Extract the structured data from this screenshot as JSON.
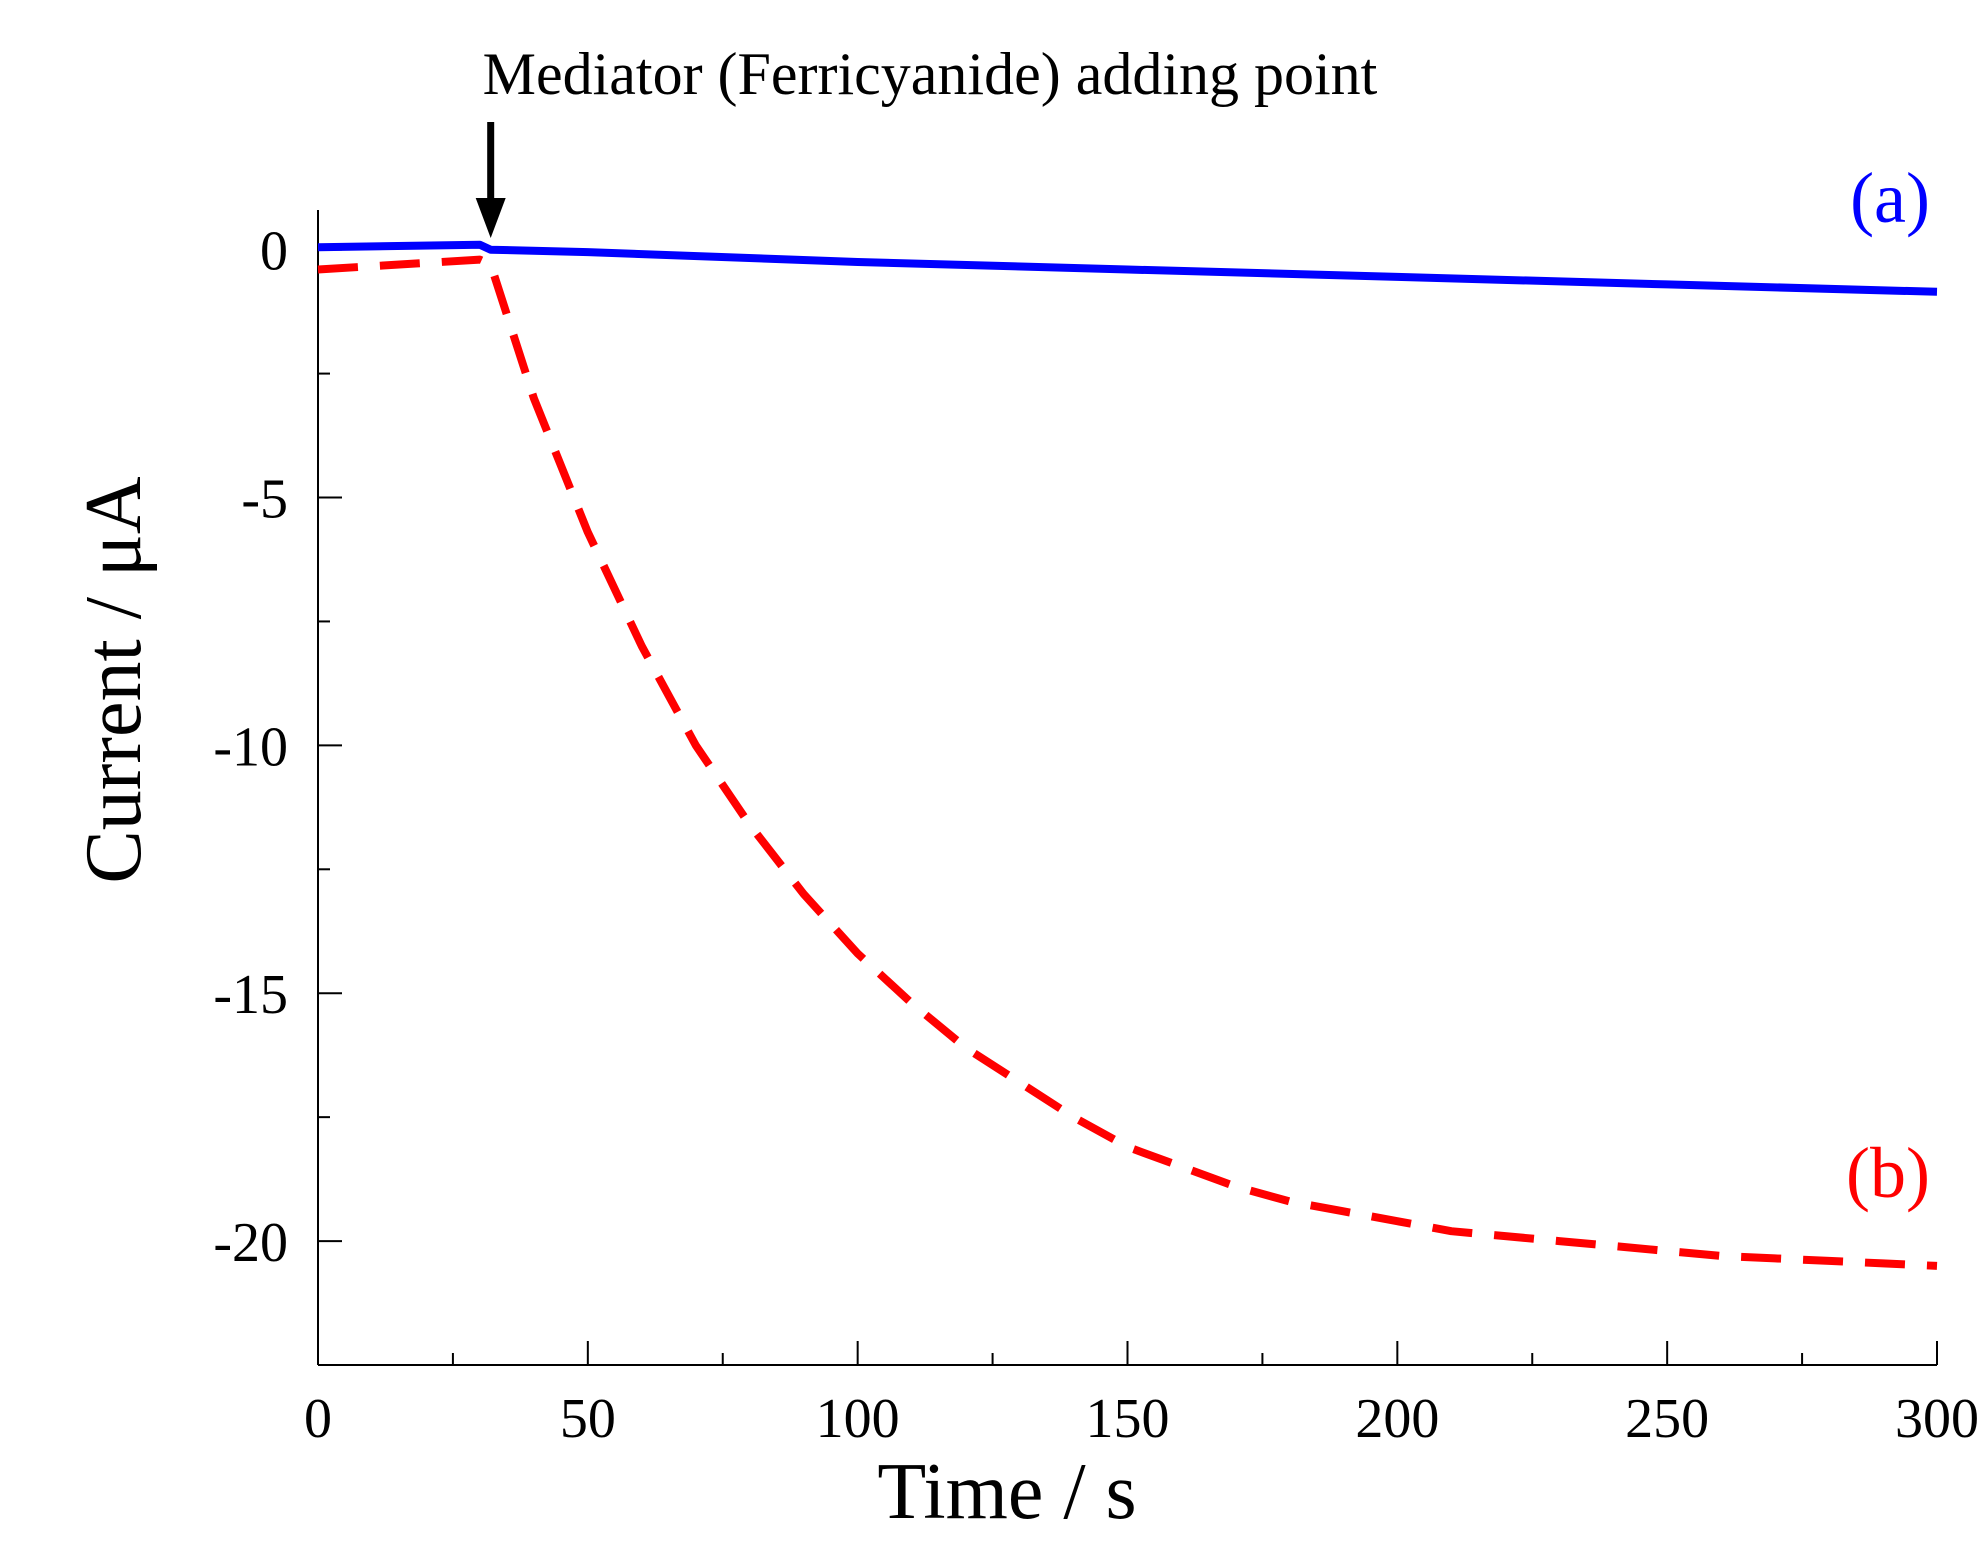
{
  "chart_data": {
    "type": "line",
    "xlabel": "Time / s",
    "ylabel": "Current / μA",
    "xlim": [
      0,
      300
    ],
    "ylim": [
      -22.5,
      0.8
    ],
    "xticks": [
      0,
      50,
      100,
      150,
      200,
      250,
      300
    ],
    "xtick_labels": [
      "0",
      "50",
      "100",
      "150",
      "200",
      "250",
      "300"
    ],
    "yticks": [
      0,
      -5,
      -10,
      -15,
      -20
    ],
    "ytick_labels": [
      "0",
      "-5",
      "-10",
      "-15",
      "-20"
    ],
    "grid": false,
    "annotation": {
      "text": "Mediator (Ferricyanide) adding point",
      "x": 32
    },
    "series": [
      {
        "name": "(a)",
        "color": "#0000ff",
        "style": "solid",
        "x": [
          0,
          30,
          32,
          50,
          100,
          150,
          200,
          250,
          300
        ],
        "y": [
          0.05,
          0.1,
          0.0,
          -0.05,
          -0.25,
          -0.4,
          -0.55,
          -0.7,
          -0.85
        ]
      },
      {
        "name": "(b)",
        "color": "#ff0000",
        "style": "dashed",
        "x": [
          0,
          30,
          32,
          40,
          50,
          60,
          70,
          80,
          90,
          100,
          110,
          120,
          130,
          140,
          150,
          160,
          170,
          180,
          190,
          200,
          210,
          220,
          230,
          240,
          250,
          260,
          270,
          280,
          290,
          300
        ],
        "y": [
          -0.4,
          -0.2,
          -0.3,
          -3.0,
          -5.7,
          -8.0,
          -10.0,
          -11.6,
          -13.0,
          -14.2,
          -15.2,
          -16.1,
          -16.8,
          -17.5,
          -18.1,
          -18.5,
          -18.9,
          -19.2,
          -19.4,
          -19.6,
          -19.8,
          -19.9,
          -20.0,
          -20.1,
          -20.2,
          -20.3,
          -20.35,
          -20.4,
          -20.45,
          -20.5
        ]
      }
    ]
  }
}
